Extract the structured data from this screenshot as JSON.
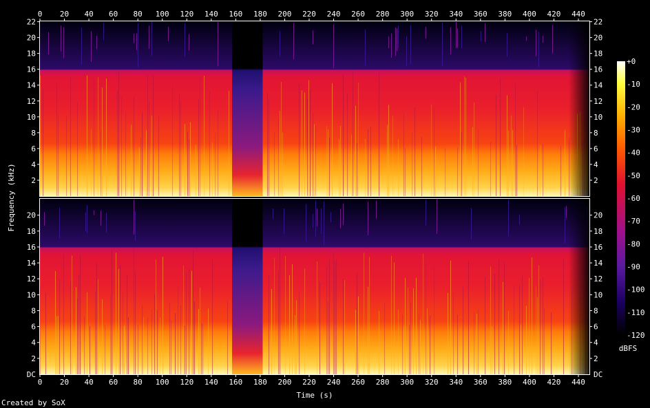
{
  "chart_data": {
    "type": "heatmap",
    "title": "",
    "xlabel": "Time (s)",
    "ylabel": "Frequency (kHz)",
    "x_ticks": [
      0,
      20,
      40,
      60,
      80,
      100,
      120,
      140,
      160,
      180,
      200,
      220,
      240,
      260,
      280,
      300,
      320,
      340,
      360,
      380,
      400,
      420,
      440
    ],
    "xlim": [
      0,
      449
    ],
    "y_ticks": [
      2,
      4,
      6,
      8,
      10,
      12,
      14,
      16,
      18,
      20,
      22
    ],
    "ylim": [
      0,
      22.05
    ],
    "dc_label": "DC",
    "channels": [
      {
        "name": "",
        "lowpass_khz": 16,
        "silent_gap_s": [
          157,
          182
        ],
        "fade_out_s": [
          432,
          448
        ]
      },
      {
        "name": "",
        "lowpass_khz": 16,
        "silent_gap_s": [
          157,
          182
        ],
        "fade_out_s": [
          432,
          448
        ]
      }
    ],
    "colorbar": {
      "label": "dBFS",
      "ticks": [
        "+0",
        "-10",
        "-20",
        "-30",
        "-40",
        "-50",
        "-60",
        "-70",
        "-80",
        "-90",
        "-100",
        "-110",
        "-120"
      ],
      "range_db": [
        -120,
        0
      ],
      "colors": [
        "#000000",
        "#1a0060",
        "#5a1aa0",
        "#a0108a",
        "#e01030",
        "#ff5a00",
        "#ffb000",
        "#ffff40",
        "#ffffff"
      ]
    },
    "grid": false,
    "credit": "Created by SoX"
  }
}
